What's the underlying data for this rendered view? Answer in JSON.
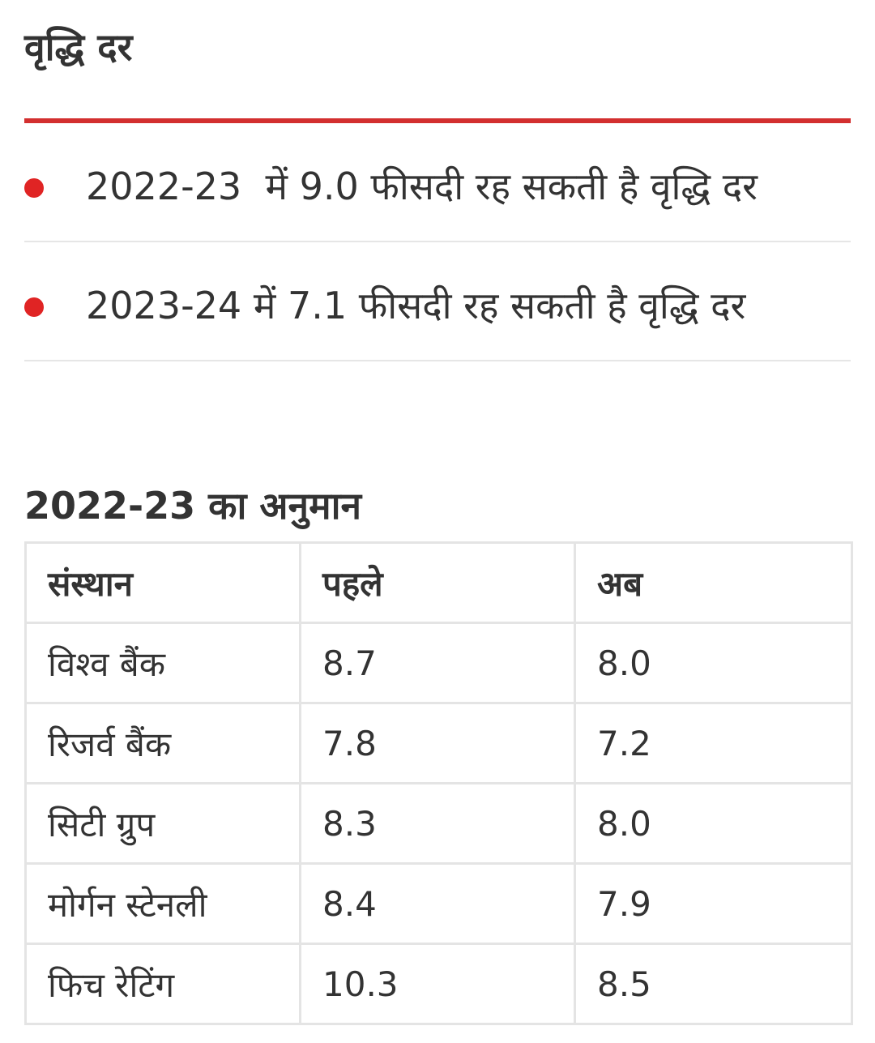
{
  "section": {
    "title": "वृद्धि दर"
  },
  "bullets": [
    "2022-23  में 9.0 फीसदी रह सकती है वृद्धि दर",
    "2023-24 में 7.1 फीसदी रह सकती है वृद्धि दर"
  ],
  "table": {
    "title": "2022-23 का अनुमान",
    "headers": [
      "संस्थान",
      "पहले",
      "अब"
    ],
    "rows": [
      [
        "विश्व बैंक",
        "8.7",
        "8.0"
      ],
      [
        "रिजर्व बैंक",
        "7.8",
        "7.2"
      ],
      [
        "सिटी ग्रुप",
        "8.3",
        "8.0"
      ],
      [
        "मोर्गन स्टेनली",
        "8.4",
        "7.9"
      ],
      [
        "फिच रेटिंग",
        "10.3",
        "8.5"
      ]
    ]
  },
  "colors": {
    "accent_rule": "#d32f2f",
    "bullet": "#e02424",
    "text": "#333333",
    "border": "#e4e4e4"
  }
}
